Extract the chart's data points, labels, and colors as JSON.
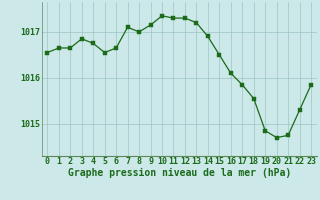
{
  "x": [
    0,
    1,
    2,
    3,
    4,
    5,
    6,
    7,
    8,
    9,
    10,
    11,
    12,
    13,
    14,
    15,
    16,
    17,
    18,
    19,
    20,
    21,
    22,
    23
  ],
  "y": [
    1016.55,
    1016.65,
    1016.65,
    1016.85,
    1016.75,
    1016.55,
    1016.65,
    1017.1,
    1017.0,
    1017.15,
    1017.35,
    1017.3,
    1017.3,
    1017.2,
    1016.9,
    1016.5,
    1016.1,
    1015.85,
    1015.55,
    1014.85,
    1014.7,
    1014.75,
    1015.3,
    1015.85
  ],
  "line_color": "#1a6b1a",
  "marker_color": "#1a6b1a",
  "bg_color": "#cce8e8",
  "grid_color": "#9dc4c4",
  "title": "Graphe pression niveau de la mer (hPa)",
  "ylim": [
    1014.3,
    1017.65
  ],
  "yticks": [
    1015,
    1016,
    1017
  ],
  "xticks": [
    0,
    1,
    2,
    3,
    4,
    5,
    6,
    7,
    8,
    9,
    10,
    11,
    12,
    13,
    14,
    15,
    16,
    17,
    18,
    19,
    20,
    21,
    22,
    23
  ],
  "title_color": "#1a6b1a",
  "tick_color": "#1a6b1a",
  "title_fontsize": 7.0,
  "tick_fontsize": 6.0,
  "axis_line_color": "#5a8a5a"
}
